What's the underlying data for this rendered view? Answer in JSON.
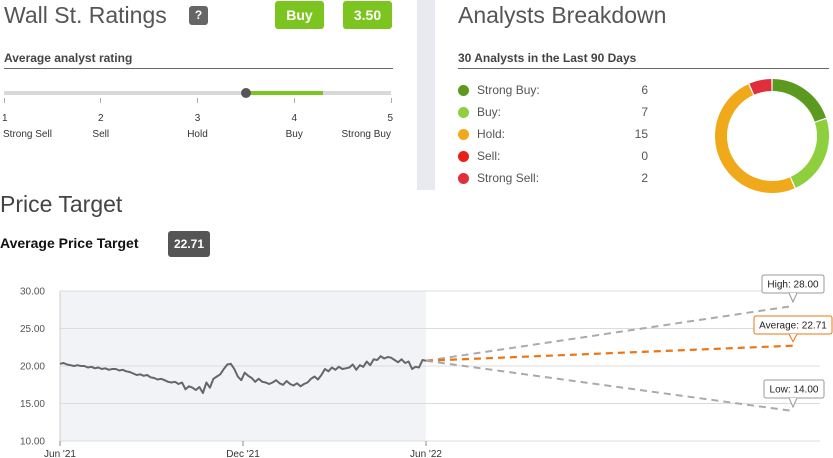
{
  "ratings": {
    "title": "Wall St. Ratings",
    "help_label": "?",
    "verdict": "Buy",
    "score": "3.50",
    "scale_title": "Average analyst rating",
    "scale_min": 1,
    "scale_max": 5,
    "scale_value": 3.5,
    "scale_numbers": [
      "1",
      "2",
      "3",
      "4",
      "5"
    ],
    "scale_labels": [
      "Strong Sell",
      "Sell",
      "Hold",
      "Buy",
      "Strong Buy"
    ],
    "colors": {
      "green": "#7cc520",
      "track": "#d9d9d9",
      "marker": "#555555"
    }
  },
  "breakdown": {
    "title": "Analysts Breakdown",
    "subtitle": "30 Analysts in the Last 90 Days",
    "items": [
      {
        "label": "Strong Buy:",
        "count": "6",
        "color": "#5b9a1f"
      },
      {
        "label": "Buy:",
        "count": "7",
        "color": "#8ecf3e"
      },
      {
        "label": "Hold:",
        "count": "15",
        "color": "#f0a91a"
      },
      {
        "label": "Sell:",
        "count": "0",
        "color": "#e8201a"
      },
      {
        "label": "Strong Sell:",
        "count": "2",
        "color": "#e02e3b"
      }
    ]
  },
  "price_target": {
    "title": "Price Target",
    "avg_label": "Average Price Target",
    "avg_value": "22.71"
  },
  "chart_data": {
    "type": "line",
    "y_ticks": [
      "30.00",
      "25.00",
      "20.00",
      "15.00",
      "10.00"
    ],
    "ylim": [
      10,
      30
    ],
    "x_ticks": [
      "Jun '21",
      "Dec '21",
      "Jun '22"
    ],
    "history_end": 20.7,
    "series": [
      {
        "values": [
          20.3,
          20.4,
          20.2,
          20.1,
          20.0,
          20.1,
          20.0,
          20.0,
          19.8,
          19.9,
          19.7,
          19.8,
          19.6,
          19.7,
          19.5,
          19.6,
          19.6,
          19.4,
          19.5,
          19.3,
          19.2,
          19.0,
          18.8,
          18.9,
          18.7,
          18.8,
          18.5,
          18.4,
          18.2,
          18.3,
          18.1,
          17.9,
          17.8,
          17.9,
          17.6,
          17.8,
          16.9,
          17.3,
          17.1,
          16.8,
          17.2,
          16.4,
          17.8,
          17.1,
          18.3,
          18.6,
          18.9,
          19.6,
          20.2,
          20.3,
          19.6,
          18.6,
          18.1,
          19.1,
          18.7,
          18.4,
          17.9,
          18.3,
          17.9,
          17.8,
          17.6,
          17.8,
          18.1,
          17.7,
          17.5,
          18.0,
          17.6,
          17.4,
          17.7,
          17.3,
          17.6,
          17.8,
          18.3,
          18.6,
          18.2,
          18.8,
          19.6,
          19.3,
          19.8,
          19.5,
          19.9,
          19.6,
          19.7,
          19.8,
          20.2,
          19.5,
          20.1,
          19.9,
          20.6,
          20.1,
          20.9,
          20.8,
          21.3,
          21.0,
          21.2,
          21.1,
          20.8,
          20.5,
          20.9,
          20.4,
          20.6,
          19.6,
          19.9,
          19.8,
          20.8,
          20.7
        ]
      }
    ],
    "projections": [
      {
        "label": "High:",
        "value": "28.00",
        "color": "#aaaaaa"
      },
      {
        "label": "Average:",
        "value": "22.71",
        "color": "#ee7411"
      },
      {
        "label": "Low:",
        "value": "14.00",
        "color": "#aaaaaa"
      }
    ]
  }
}
